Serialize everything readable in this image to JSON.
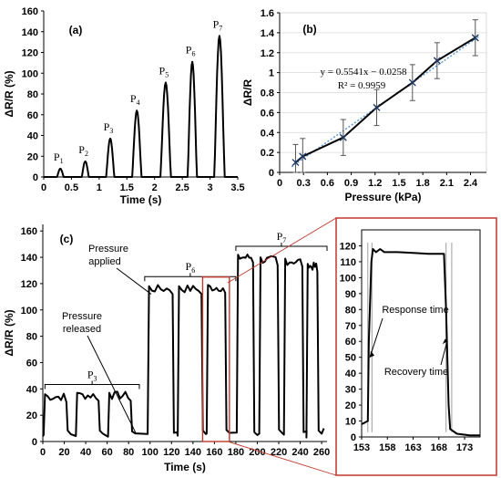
{
  "chart_data": [
    {
      "panel_label": "(a)",
      "type": "line",
      "xlabel": "Time (s)",
      "ylabel": "ΔR/R (%)",
      "xlim": [
        0,
        3.5
      ],
      "ylim": [
        0,
        160
      ],
      "xticks": [
        "0",
        "0.5",
        "1",
        "1.5",
        "2",
        "2.5",
        "3",
        "3.5"
      ],
      "yticks": [
        "0",
        "20",
        "40",
        "60",
        "80",
        "100",
        "120",
        "140",
        "160"
      ],
      "peaks": [
        {
          "label": "P",
          "sub": "1",
          "x": 0.3,
          "peak": 8,
          "width": 0.12
        },
        {
          "label": "P",
          "sub": "2",
          "x": 0.75,
          "peak": 15,
          "width": 0.13
        },
        {
          "label": "P",
          "sub": "3",
          "x": 1.2,
          "peak": 37,
          "width": 0.15
        },
        {
          "label": "P",
          "sub": "4",
          "x": 1.68,
          "peak": 64,
          "width": 0.17
        },
        {
          "label": "P",
          "sub": "5",
          "x": 2.2,
          "peak": 91,
          "width": 0.19
        },
        {
          "label": "P",
          "sub": "6",
          "x": 2.68,
          "peak": 111,
          "width": 0.17
        },
        {
          "label": "P",
          "sub": "7",
          "x": 3.17,
          "peak": 136,
          "width": 0.19
        }
      ]
    },
    {
      "panel_label": "(b)",
      "type": "scatter",
      "xlabel": "Pressure (kPa)",
      "ylabel": "ΔR/R",
      "xlim": [
        0,
        2.6
      ],
      "ylim": [
        0,
        1.6
      ],
      "xticks": [
        "0",
        "0.3",
        "0.6",
        "0.9",
        "1.2",
        "1.5",
        "1.8",
        "2.1",
        "2.4"
      ],
      "yticks": [
        "0",
        "0.2",
        "0.4",
        "0.6",
        "0.8",
        "1",
        "1.2",
        "1.4",
        "1.6"
      ],
      "grid": true,
      "x": [
        0.2,
        0.29,
        0.8,
        1.22,
        1.67,
        1.98,
        2.46
      ],
      "y": [
        0.1,
        0.16,
        0.35,
        0.65,
        0.9,
        1.12,
        1.35
      ],
      "errors": [
        0.18,
        0.18,
        0.18,
        0.18,
        0.18,
        0.18,
        0.18
      ],
      "fit_equation": "y = 0.5541x − 0.0258",
      "r_squared_label": "R² = 0.9959",
      "fit": {
        "slope": 0.5541,
        "intercept": -0.0258
      }
    },
    {
      "panel_label": "(c)",
      "type": "line",
      "xlabel": "Time (s)",
      "ylabel": "ΔR/R (%)",
      "xlim": [
        0,
        265
      ],
      "ylim": [
        0,
        165
      ],
      "xticks": [
        "0",
        "20",
        "40",
        "60",
        "80",
        "100",
        "120",
        "140",
        "160",
        "180",
        "200",
        "220",
        "240",
        "260"
      ],
      "yticks": [
        "0",
        "20",
        "40",
        "60",
        "80",
        "100",
        "120",
        "140",
        "160"
      ],
      "groups": [
        {
          "label": "P",
          "sub": "3",
          "x_start": 2,
          "x_end": 90,
          "pulses": [
            {
              "start": 2,
              "end": 22,
              "level": 34
            },
            {
              "start": 32,
              "end": 52,
              "level": 35
            },
            {
              "start": 62,
              "end": 82,
              "level": 35
            }
          ]
        },
        {
          "label": "P",
          "sub": "6",
          "x_start": 95,
          "x_end": 180,
          "pulses": [
            {
              "start": 99,
              "end": 121,
              "level": 116
            },
            {
              "start": 127,
              "end": 148,
              "level": 116
            },
            {
              "start": 154,
              "end": 170,
              "level": 117
            }
          ]
        },
        {
          "label": "P",
          "sub": "7",
          "x_start": 180,
          "x_end": 265,
          "pulses": [
            {
              "start": 182,
              "end": 196,
              "level": 140
            },
            {
              "start": 203,
              "end": 219,
              "level": 138
            },
            {
              "start": 226,
              "end": 242,
              "level": 137
            },
            {
              "start": 247,
              "end": 256,
              "level": 133
            }
          ]
        }
      ],
      "annotations": [
        "Pressure applied",
        "Pressure released"
      ],
      "highlight_range": [
        153,
        175
      ]
    },
    {
      "type": "line",
      "xlim": [
        153,
        176
      ],
      "ylim": [
        0,
        130
      ],
      "xticks": [
        "153",
        "158",
        "163",
        "168",
        "173"
      ],
      "yticks": [
        "0",
        "10",
        "20",
        "30",
        "40",
        "50",
        "60",
        "70",
        "80",
        "90",
        "100",
        "110",
        "120"
      ],
      "response_time_label": "Response time",
      "recovery_time_label": "Recovery time",
      "pulse": {
        "rise_start": 154.2,
        "rise_end": 155.2,
        "level": 116,
        "fall_start": 169.0,
        "fall_end": 170.2
      }
    }
  ],
  "colors": {
    "curve": "#000000",
    "fit_line": "#5b9bd5",
    "highlight": "#c0392b",
    "grid": "#d9d9d9"
  }
}
